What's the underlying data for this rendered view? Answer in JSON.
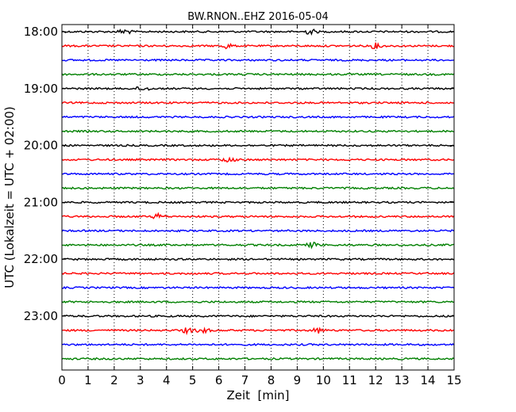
{
  "chart_data": {
    "type": "line",
    "title": "BW.RNON..EHZ 2016-05-04",
    "xlabel": "Zeit  [min]",
    "ylabel": "UTC (Lokalzeit = UTC + 02:00)",
    "xlim": [
      0,
      15
    ],
    "x_ticks": [
      "0",
      "1",
      "2",
      "3",
      "4",
      "5",
      "6",
      "7",
      "8",
      "9",
      "10",
      "11",
      "12",
      "13",
      "14",
      "15"
    ],
    "y_tick_labels": [
      "18:00",
      "19:00",
      "20:00",
      "21:00",
      "22:00",
      "23:00"
    ],
    "grid": "vertical dotted",
    "trace_colors": [
      "#000000",
      "#ff0000",
      "#0000ff",
      "#008000"
    ],
    "series": [
      {
        "time": "18:00",
        "color": "#000000",
        "events_min": [
          2.4,
          9.5
        ]
      },
      {
        "time": "18:15",
        "color": "#ff0000",
        "events_min": [
          6.3,
          12.0
        ]
      },
      {
        "time": "18:30",
        "color": "#0000ff",
        "events_min": []
      },
      {
        "time": "18:45",
        "color": "#008000",
        "events_min": []
      },
      {
        "time": "19:00",
        "color": "#000000",
        "events_min": [
          3.1
        ]
      },
      {
        "time": "19:15",
        "color": "#ff0000",
        "events_min": []
      },
      {
        "time": "19:30",
        "color": "#0000ff",
        "events_min": []
      },
      {
        "time": "19:45",
        "color": "#008000",
        "events_min": []
      },
      {
        "time": "20:00",
        "color": "#000000",
        "events_min": []
      },
      {
        "time": "20:15",
        "color": "#ff0000",
        "events_min": [
          6.4
        ]
      },
      {
        "time": "20:30",
        "color": "#0000ff",
        "events_min": []
      },
      {
        "time": "20:45",
        "color": "#008000",
        "events_min": []
      },
      {
        "time": "21:00",
        "color": "#000000",
        "events_min": []
      },
      {
        "time": "21:15",
        "color": "#ff0000",
        "events_min": [
          3.7
        ]
      },
      {
        "time": "21:30",
        "color": "#0000ff",
        "events_min": []
      },
      {
        "time": "21:45",
        "color": "#008000",
        "events_min": [
          9.6
        ]
      },
      {
        "time": "22:00",
        "color": "#000000",
        "events_min": []
      },
      {
        "time": "22:15",
        "color": "#ff0000",
        "events_min": []
      },
      {
        "time": "22:30",
        "color": "#0000ff",
        "events_min": []
      },
      {
        "time": "22:45",
        "color": "#008000",
        "events_min": []
      },
      {
        "time": "23:00",
        "color": "#000000",
        "events_min": []
      },
      {
        "time": "23:15",
        "color": "#ff0000",
        "events_min": [
          4.8,
          5.4,
          9.8
        ]
      },
      {
        "time": "23:30",
        "color": "#0000ff",
        "events_min": []
      },
      {
        "time": "23:45",
        "color": "#008000",
        "events_min": []
      }
    ]
  }
}
